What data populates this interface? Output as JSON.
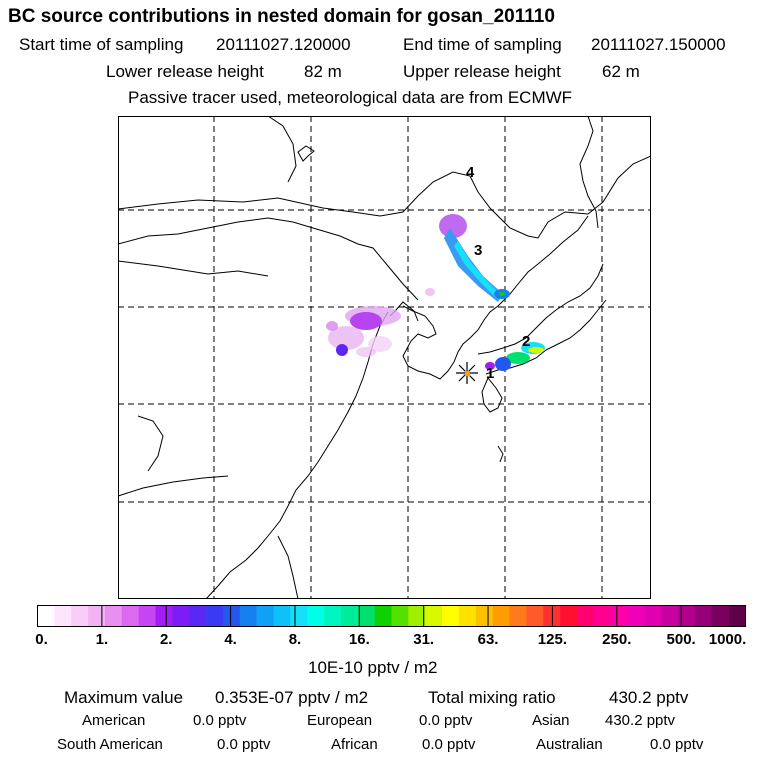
{
  "header": {
    "title": "BC  source contributions in nested domain for gosan_201110",
    "start_label": "Start time of sampling",
    "start_value": "20111027.120000",
    "end_label": "End time of sampling",
    "end_value": "20111027.150000",
    "lower_label": "Lower release height",
    "lower_value": "82 m",
    "upper_label": "Upper release height",
    "upper_value": "62 m",
    "note": "Passive tracer used, meteorological data are from ECMWF"
  },
  "map": {
    "markers": [
      {
        "label": "1"
      },
      {
        "label": "2"
      },
      {
        "label": "3"
      },
      {
        "label": "4"
      }
    ],
    "site_marker": "star-cross-icon"
  },
  "colorbar": {
    "ticks": [
      "0.",
      "1.",
      "2.",
      "4.",
      "8.",
      "16.",
      "31.",
      "63.",
      "125.",
      "250.",
      "500.",
      "1000."
    ],
    "unit": "10E-10 pptv / m2",
    "colors": [
      "#ffffff",
      "#fde6fd",
      "#f9cdf9",
      "#f2b3f2",
      "#e98fef",
      "#dc6af0",
      "#c645f2",
      "#a21cf5",
      "#7d1cf5",
      "#5a28f2",
      "#3a3af2",
      "#2456f0",
      "#1780f0",
      "#10a0f5",
      "#10c0f8",
      "#14e0fa",
      "#00ffe8",
      "#00f5c2",
      "#00eb9a",
      "#00e070",
      "#0fd000",
      "#55e000",
      "#a0ee00",
      "#d8f800",
      "#ffff00",
      "#ffe000",
      "#ffc000",
      "#ff9d00",
      "#ff7a1a",
      "#ff5a2a",
      "#ff3030",
      "#ff1030",
      "#ff0070",
      "#ff0090",
      "#ff00a8",
      "#f000b8",
      "#e000b0",
      "#c8009f",
      "#b0008c",
      "#950078",
      "#7a0060",
      "#600048"
    ]
  },
  "stats": {
    "max_label": "Maximum value",
    "max_value": "0.353E-07 pptv / m2",
    "total_label": "Total mixing ratio",
    "total_value": "430.2 pptv",
    "regions": [
      {
        "name": "American",
        "value": "0.0 pptv"
      },
      {
        "name": "European",
        "value": "0.0 pptv"
      },
      {
        "name": "Asian",
        "value": "430.2 pptv"
      },
      {
        "name": "South American",
        "value": "0.0 pptv"
      },
      {
        "name": "African",
        "value": "0.0 pptv"
      },
      {
        "name": "Australian",
        "value": "0.0 pptv"
      }
    ]
  }
}
